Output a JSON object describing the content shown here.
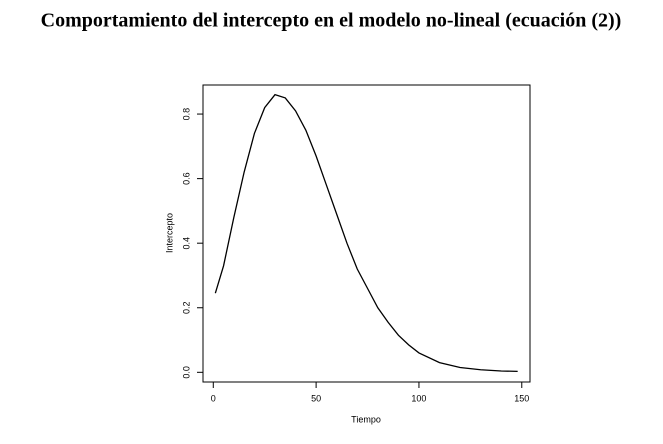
{
  "chart_data": {
    "type": "line",
    "title": "Comportamiento del intercepto en el modelo no-lineal (ecuación (2))",
    "x_label": "Tiempo",
    "y_label": "Intercepto",
    "x": [
      1,
      5,
      10,
      15,
      20,
      25,
      30,
      35,
      40,
      45,
      50,
      55,
      60,
      65,
      70,
      75,
      80,
      85,
      90,
      95,
      100,
      110,
      120,
      130,
      140,
      148
    ],
    "series": [
      {
        "name": "Intercepto",
        "color": "#000000",
        "values": [
          0.245,
          0.33,
          0.48,
          0.62,
          0.74,
          0.82,
          0.86,
          0.85,
          0.81,
          0.75,
          0.67,
          0.58,
          0.49,
          0.4,
          0.32,
          0.26,
          0.2,
          0.155,
          0.115,
          0.085,
          0.06,
          0.03,
          0.015,
          0.008,
          0.004,
          0.003
        ]
      }
    ],
    "xlim": [
      -5,
      154
    ],
    "ylim": [
      -0.03,
      0.89
    ],
    "xticks": [
      0,
      50,
      100,
      150
    ],
    "yticks": [
      {
        "value": 0,
        "label": "0.0"
      },
      {
        "value": 0.2,
        "label": "0.2"
      },
      {
        "value": 0.4,
        "label": "0.4"
      },
      {
        "value": 0.6,
        "label": "0.6"
      },
      {
        "value": 0.8,
        "label": "0.8"
      }
    ]
  }
}
